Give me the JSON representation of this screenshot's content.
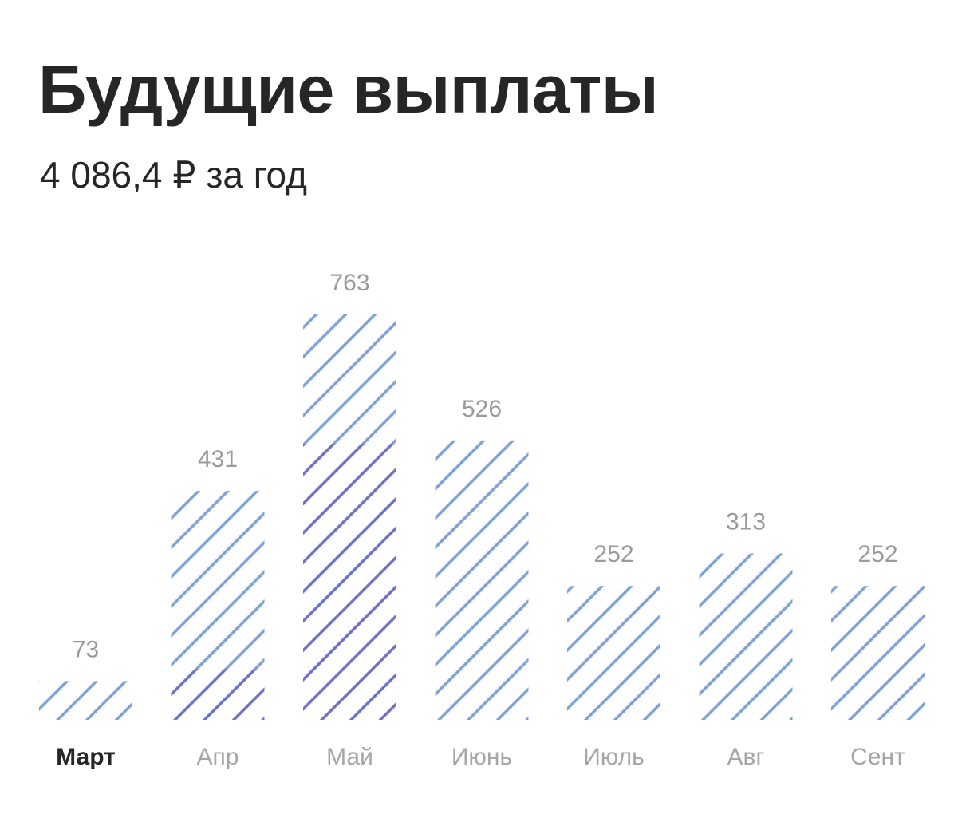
{
  "header": {
    "title": "Будущие выплаты",
    "subtitle": "4 086,4 ₽ за год"
  },
  "colors": {
    "light_stripe": "#7ea1d6",
    "dark_stripe": "#6e72c4",
    "text": "#262626",
    "muted": "#9a9a9a"
  },
  "chart_data": {
    "type": "bar",
    "categories": [
      "Март",
      "Апр",
      "Май",
      "Июнь",
      "Июль",
      "Авг",
      "Сент"
    ],
    "current_category": "Март",
    "series": [
      {
        "values": [
          0,
          96,
          520,
          0,
          0,
          0,
          0
        ]
      },
      {
        "values": [
          73,
          335,
          243,
          526,
          252,
          313,
          252
        ]
      }
    ],
    "totals": [
      73,
      431,
      763,
      526,
      252,
      313,
      252
    ],
    "value_labels": [
      "73",
      "431",
      "763",
      "526",
      "252",
      "313",
      "252"
    ],
    "ylim": [
      0,
      763
    ],
    "grid": false,
    "legend": "none"
  }
}
